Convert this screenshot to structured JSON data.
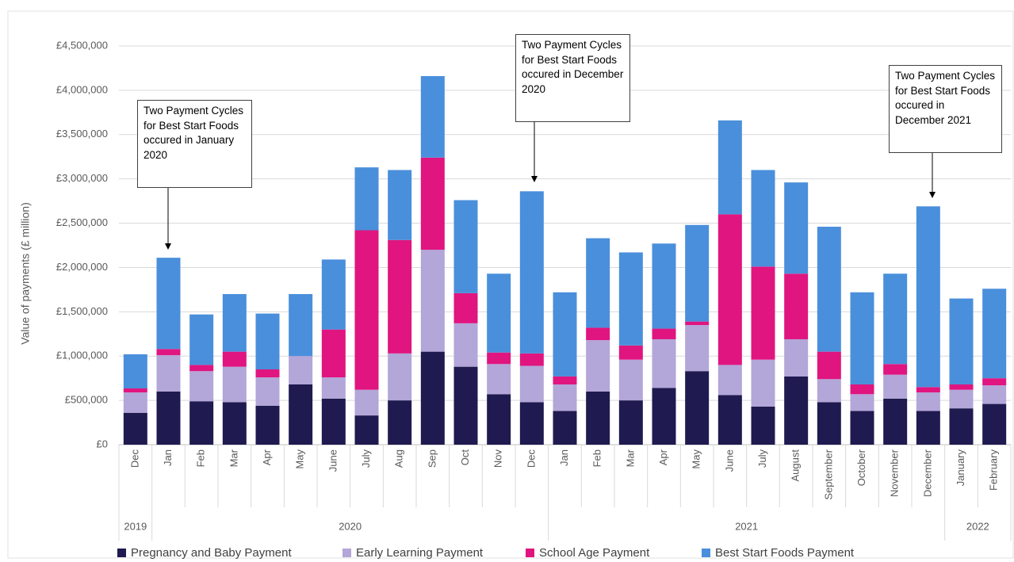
{
  "chart_data": {
    "type": "stacked_bar",
    "y_label": "Value of payments (£ million)",
    "groups": [
      {
        "label": "2019",
        "categories": [
          "Dec"
        ]
      },
      {
        "label": "2020",
        "categories": [
          "Jan",
          "Feb",
          "Mar",
          "Apr",
          "May",
          "June",
          "July",
          "Aug",
          "Sep",
          "Oct",
          "Nov",
          "Dec"
        ]
      },
      {
        "label": "2021",
        "categories": [
          "Jan",
          "Feb",
          "Mar",
          "Apr",
          "May",
          "June",
          "July",
          "August",
          "September",
          "October",
          "November",
          "December"
        ]
      },
      {
        "label": "2022",
        "categories": [
          "January",
          "February"
        ]
      }
    ],
    "series": [
      {
        "name": "Pregnancy and Baby Payment",
        "color": "#1f1a4f",
        "values": [
          360000,
          600000,
          490000,
          480000,
          440000,
          680000,
          520000,
          330000,
          500000,
          1050000,
          880000,
          570000,
          480000,
          380000,
          600000,
          500000,
          640000,
          830000,
          560000,
          430000,
          770000,
          480000,
          380000,
          520000,
          380000,
          410000,
          460000
        ]
      },
      {
        "name": "Early Learning Payment",
        "color": "#b3a6d8",
        "values": [
          230000,
          410000,
          340000,
          400000,
          320000,
          320000,
          240000,
          290000,
          530000,
          1150000,
          490000,
          340000,
          410000,
          300000,
          580000,
          460000,
          550000,
          520000,
          340000,
          530000,
          420000,
          260000,
          190000,
          270000,
          210000,
          210000,
          210000
        ]
      },
      {
        "name": "School Age Payment",
        "color": "#e0157f",
        "values": [
          45000,
          70000,
          70000,
          170000,
          90000,
          0,
          540000,
          1800000,
          1280000,
          1040000,
          340000,
          130000,
          140000,
          90000,
          140000,
          160000,
          120000,
          40000,
          1700000,
          1050000,
          740000,
          310000,
          110000,
          120000,
          60000,
          60000,
          80000
        ]
      },
      {
        "name": "Best Start Foods Payment",
        "color": "#4a8fdb",
        "values": [
          385000,
          1030000,
          570000,
          650000,
          630000,
          700000,
          790000,
          710000,
          790000,
          920000,
          1050000,
          890000,
          1830000,
          950000,
          1010000,
          1050000,
          960000,
          1090000,
          1060000,
          1090000,
          1030000,
          1410000,
          1040000,
          1020000,
          2040000,
          970000,
          1010000
        ]
      }
    ],
    "ylim": [
      0,
      4500000
    ],
    "yticks": [
      {
        "value": 0,
        "label": "£0"
      },
      {
        "value": 500000,
        "label": "£500,000"
      },
      {
        "value": 1000000,
        "label": "£1,000,000"
      },
      {
        "value": 1500000,
        "label": "£1,500,000"
      },
      {
        "value": 2000000,
        "label": "£2,000,000"
      },
      {
        "value": 2500000,
        "label": "£2,500,000"
      },
      {
        "value": 3000000,
        "label": "£3,000,000"
      },
      {
        "value": 3500000,
        "label": "£3,500,000"
      },
      {
        "value": 4000000,
        "label": "£4,000,000"
      },
      {
        "value": 4500000,
        "label": "£4,500,000"
      }
    ],
    "grid": true,
    "legend": "bottom",
    "annotations": [
      "Two Payment Cycles for Best Start Foods occured in January 2020",
      "Two Payment Cycles for Best Start Foods occured in December 2020",
      "Two Payment Cycles for Best Start Foods occured in December 2021"
    ]
  }
}
